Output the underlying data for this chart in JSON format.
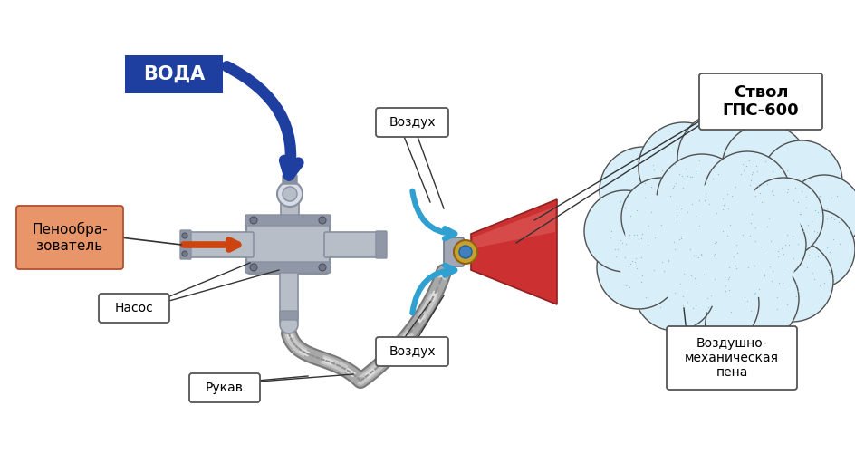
{
  "bg_color": "#ffffff",
  "labels": {
    "voda": "ВОДА",
    "peno": "Пенообра-\nзователь",
    "nasos": "Насос",
    "rukav": "Рукав",
    "vozduh1": "Воздух",
    "vozduh2": "Воздух",
    "stvol": "Ствол\nГПС-600",
    "pena": "Воздушно-\nмеханическая\nпена"
  },
  "colors": {
    "bg": "#ffffff",
    "water_box": "#1f3fa0",
    "water_text": "#ffffff",
    "water_arrow": "#1f3fa0",
    "peno_box": "#e8956a",
    "peno_border": "#b05030",
    "foam_arrow": "#cc4410",
    "pipe": "#b8bec8",
    "pipe_dark": "#8890a0",
    "pipe_light": "#d8dce8",
    "hose_dark": "#909090",
    "hose_mid": "#b8b8b8",
    "hose_light": "#d0d0d0",
    "nozzle_red": "#cc3030",
    "nozzle_light": "#e06060",
    "nozzle_dark": "#902020",
    "air_color": "#30a0d0",
    "cloud_fill": "#d8eef8",
    "cloud_border": "#505050",
    "cloud_dot": "#90c0d8",
    "label_bg": "#ffffff",
    "label_border": "#555555",
    "line_color": "#333333",
    "bolt": "#707888"
  }
}
